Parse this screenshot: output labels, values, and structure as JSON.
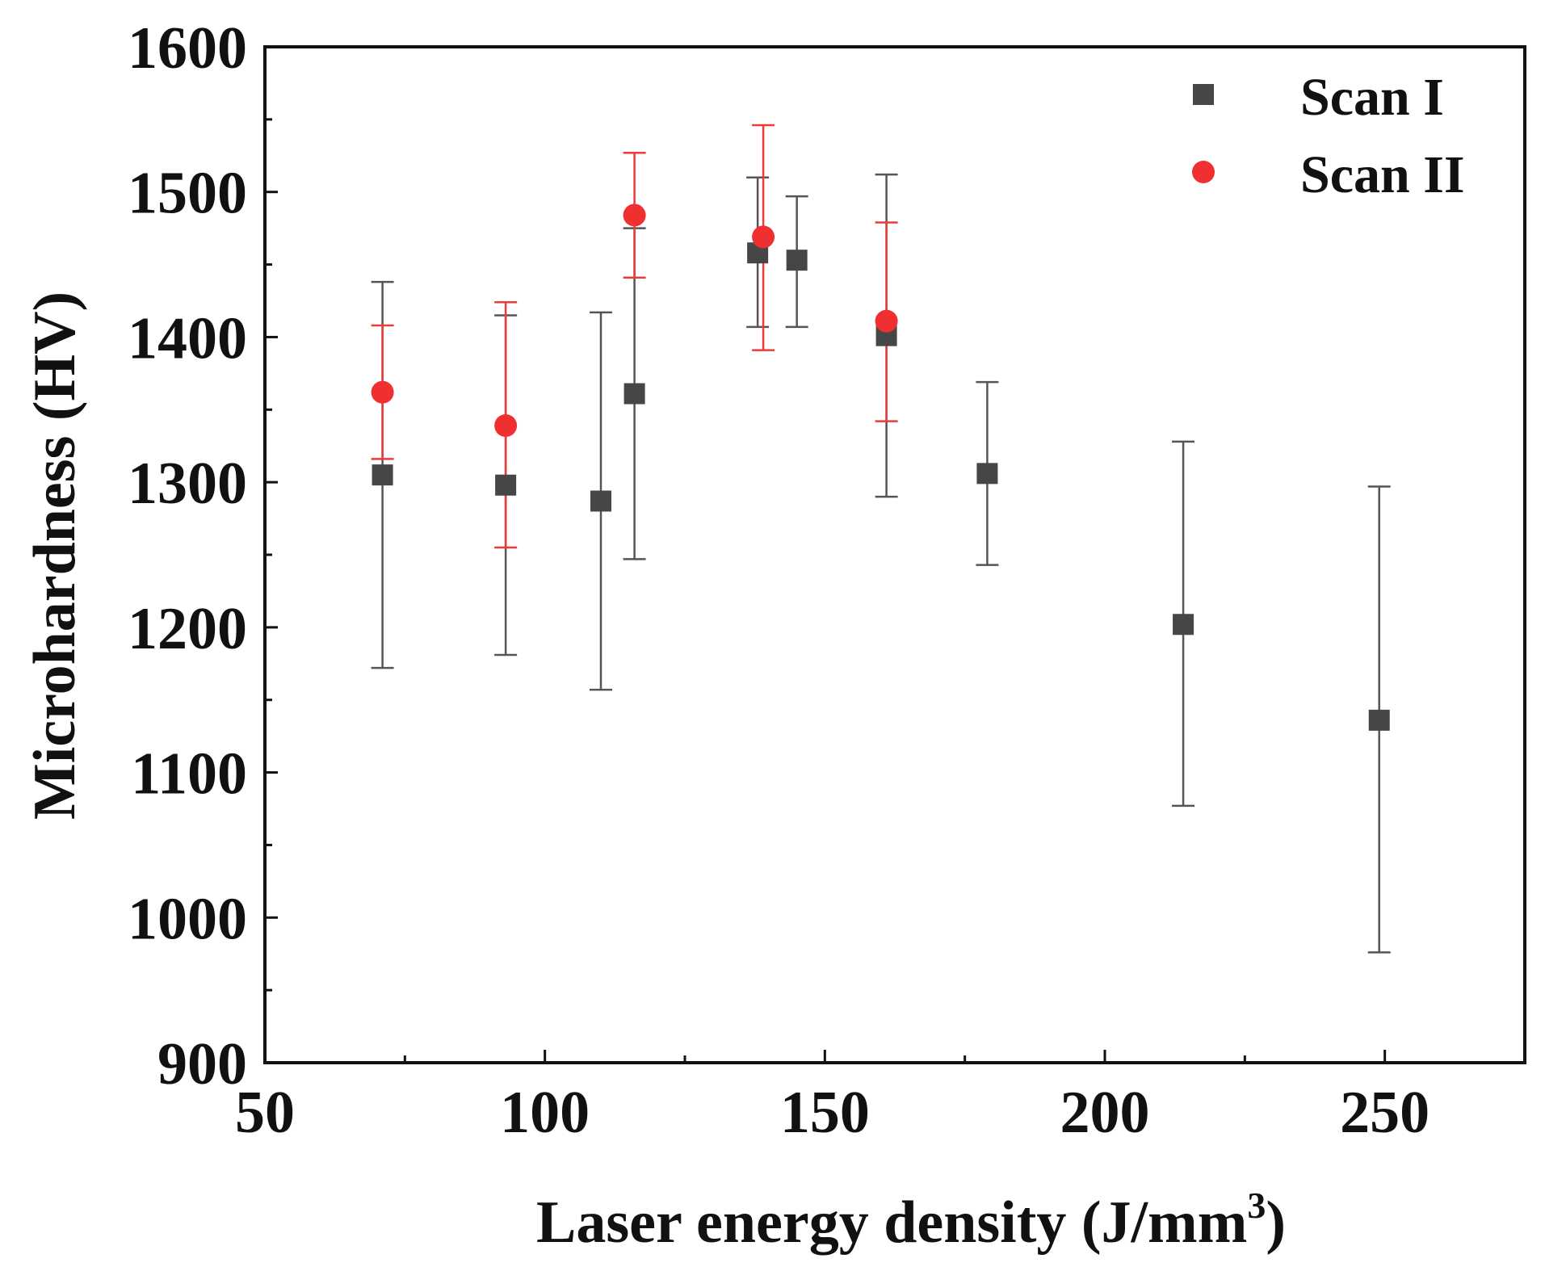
{
  "chart_data": {
    "type": "scatter",
    "title": "",
    "xlabel": "Laser energy density (J/mm",
    "xlabel_superscript": "3",
    "xlabel_close": ")",
    "ylabel": "Microhardness (HV)",
    "xlim": [
      50,
      275
    ],
    "ylim": [
      900,
      1600
    ],
    "x_ticks": [
      50,
      100,
      150,
      200,
      250
    ],
    "x_minor_ticks": [
      75,
      125,
      175,
      225
    ],
    "y_ticks": [
      900,
      1000,
      1100,
      1200,
      1300,
      1400,
      1500,
      1600
    ],
    "y_minor_ticks": [
      950,
      1050,
      1150,
      1250,
      1350,
      1450,
      1550
    ],
    "grid": false,
    "legend": "top-right",
    "series": [
      {
        "name": "Scan I",
        "marker": "square",
        "color": "#464646",
        "error_color": "#555555",
        "points": [
          {
            "x": 71,
            "y": 1305,
            "low": 1172,
            "high": 1438
          },
          {
            "x": 93,
            "y": 1298,
            "low": 1181,
            "high": 1415
          },
          {
            "x": 110,
            "y": 1287,
            "low": 1157,
            "high": 1417
          },
          {
            "x": 116,
            "y": 1361,
            "low": 1247,
            "high": 1475
          },
          {
            "x": 138,
            "y": 1458,
            "low": 1407,
            "high": 1510
          },
          {
            "x": 145,
            "y": 1453,
            "low": 1407,
            "high": 1497
          },
          {
            "x": 161,
            "y": 1401,
            "low": 1290,
            "high": 1512
          },
          {
            "x": 179,
            "y": 1306,
            "low": 1243,
            "high": 1369
          },
          {
            "x": 214,
            "y": 1202,
            "low": 1077,
            "high": 1328
          },
          {
            "x": 249,
            "y": 1136,
            "low": 976,
            "high": 1297
          }
        ]
      },
      {
        "name": "Scan II",
        "marker": "circle",
        "color": "#f03030",
        "error_color": "#ee3a3a",
        "points": [
          {
            "x": 71,
            "y": 1362,
            "low": 1316,
            "high": 1408
          },
          {
            "x": 93,
            "y": 1339,
            "low": 1255,
            "high": 1424
          },
          {
            "x": 116,
            "y": 1484,
            "low": 1441,
            "high": 1527
          },
          {
            "x": 139,
            "y": 1469,
            "low": 1391,
            "high": 1546
          },
          {
            "x": 161,
            "y": 1411,
            "low": 1342,
            "high": 1479
          }
        ]
      }
    ]
  }
}
